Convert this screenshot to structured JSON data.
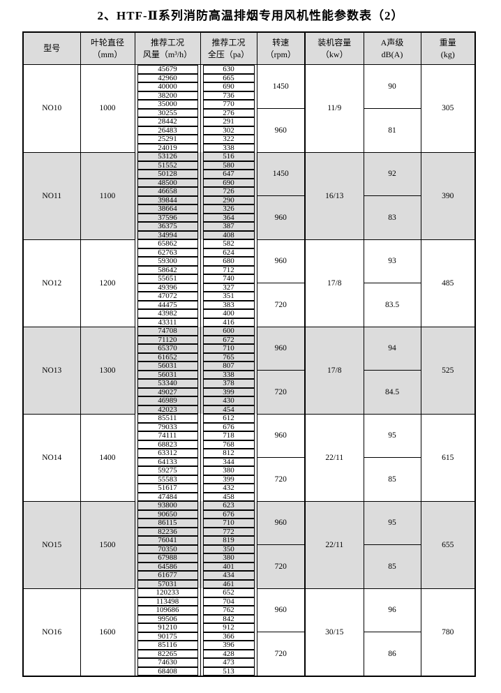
{
  "page_title": "2、HTF-Ⅱ系列消防高温排烟专用风机性能参数表（2）",
  "colors": {
    "shade": "#dcdcdc",
    "border": "#000000"
  },
  "table": {
    "headers": [
      {
        "line1": "型号",
        "line2": ""
      },
      {
        "line1": "叶轮直径",
        "line2": "（mm）"
      },
      {
        "line1": "推荐工况",
        "line2": "风量（m³/h）"
      },
      {
        "line1": "推荐工况",
        "line2": "全压（pa）"
      },
      {
        "line1": "转速",
        "line2": "（rpm）"
      },
      {
        "line1": "装机容量",
        "line2": "（kw）"
      },
      {
        "line1": "A声级",
        "line2": "dB(A)"
      },
      {
        "line1": "重量",
        "line2": "(kg)"
      }
    ],
    "blocks": [
      {
        "model": "NO10",
        "diameter_mm": "1000",
        "capacity_kw": "11/9",
        "weight_kg": "305",
        "shaded": false,
        "groups": [
          {
            "speed_rpm": "1450",
            "db_a": "90",
            "rows": [
              [
                "45679",
                "630"
              ],
              [
                "42960",
                "665"
              ],
              [
                "40000",
                "690"
              ],
              [
                "38200",
                "736"
              ],
              [
                "35000",
                "770"
              ]
            ]
          },
          {
            "speed_rpm": "960",
            "db_a": "81",
            "rows": [
              [
                "30255",
                "276"
              ],
              [
                "28442",
                "291"
              ],
              [
                "26483",
                "302"
              ],
              [
                "25291",
                "322"
              ],
              [
                "24019",
                "338"
              ]
            ]
          }
        ]
      },
      {
        "model": "NO11",
        "diameter_mm": "1100",
        "capacity_kw": "16/13",
        "weight_kg": "390",
        "shaded": true,
        "groups": [
          {
            "speed_rpm": "1450",
            "db_a": "92",
            "rows": [
              [
                "53126",
                "516"
              ],
              [
                "51552",
                "580"
              ],
              [
                "50128",
                "647"
              ],
              [
                "48500",
                "690"
              ],
              [
                "46658",
                "726"
              ]
            ]
          },
          {
            "speed_rpm": "960",
            "db_a": "83",
            "rows": [
              [
                "39844",
                "290"
              ],
              [
                "38664",
                "326"
              ],
              [
                "37596",
                "364"
              ],
              [
                "36375",
                "387"
              ],
              [
                "34994",
                "408"
              ]
            ]
          }
        ]
      },
      {
        "model": "NO12",
        "diameter_mm": "1200",
        "capacity_kw": "17/8",
        "weight_kg": "485",
        "shaded": false,
        "groups": [
          {
            "speed_rpm": "960",
            "db_a": "93",
            "rows": [
              [
                "65862",
                "582"
              ],
              [
                "62763",
                "624"
              ],
              [
                "59300",
                "680"
              ],
              [
                "58642",
                "712"
              ],
              [
                "55651",
                "740"
              ]
            ]
          },
          {
            "speed_rpm": "720",
            "db_a": "83.5",
            "rows": [
              [
                "49396",
                "327"
              ],
              [
                "47072",
                "351"
              ],
              [
                "44475",
                "383"
              ],
              [
                "43982",
                "400"
              ],
              [
                "43311",
                "416"
              ]
            ]
          }
        ]
      },
      {
        "model": "NO13",
        "diameter_mm": "1300",
        "capacity_kw": "17/8",
        "weight_kg": "525",
        "shaded": true,
        "groups": [
          {
            "speed_rpm": "960",
            "db_a": "94",
            "rows": [
              [
                "74708",
                "600"
              ],
              [
                "71120",
                "672"
              ],
              [
                "65370",
                "710"
              ],
              [
                "61652",
                "765"
              ],
              [
                "56031",
                "807"
              ]
            ]
          },
          {
            "speed_rpm": "720",
            "db_a": "84.5",
            "rows": [
              [
                "56031",
                "338"
              ],
              [
                "53340",
                "378"
              ],
              [
                "49027",
                "399"
              ],
              [
                "46989",
                "430"
              ],
              [
                "42023",
                "454"
              ]
            ]
          }
        ]
      },
      {
        "model": "NO14",
        "diameter_mm": "1400",
        "capacity_kw": "22/11",
        "weight_kg": "615",
        "shaded": false,
        "groups": [
          {
            "speed_rpm": "960",
            "db_a": "95",
            "rows": [
              [
                "85511",
                "612"
              ],
              [
                "79033",
                "676"
              ],
              [
                "74111",
                "718"
              ],
              [
                "68823",
                "768"
              ],
              [
                "63312",
                "812"
              ]
            ]
          },
          {
            "speed_rpm": "720",
            "db_a": "85",
            "rows": [
              [
                "64133",
                "344"
              ],
              [
                "59275",
                "380"
              ],
              [
                "55583",
                "399"
              ],
              [
                "51617",
                "432"
              ],
              [
                "47484",
                "458"
              ]
            ]
          }
        ]
      },
      {
        "model": "NO15",
        "diameter_mm": "1500",
        "capacity_kw": "22/11",
        "weight_kg": "655",
        "shaded": true,
        "groups": [
          {
            "speed_rpm": "960",
            "db_a": "95",
            "rows": [
              [
                "93800",
                "623"
              ],
              [
                "90650",
                "676"
              ],
              [
                "86115",
                "710"
              ],
              [
                "82236",
                "772"
              ],
              [
                "76041",
                "819"
              ]
            ]
          },
          {
            "speed_rpm": "720",
            "db_a": "85",
            "rows": [
              [
                "70350",
                "350"
              ],
              [
                "67988",
                "380"
              ],
              [
                "64586",
                "401"
              ],
              [
                "61677",
                "434"
              ],
              [
                "57031",
                "461"
              ]
            ]
          }
        ]
      },
      {
        "model": "NO16",
        "diameter_mm": "1600",
        "capacity_kw": "30/15",
        "weight_kg": "780",
        "shaded": false,
        "groups": [
          {
            "speed_rpm": "960",
            "db_a": "96",
            "rows": [
              [
                "120233",
                "652"
              ],
              [
                "113498",
                "704"
              ],
              [
                "109686",
                "762"
              ],
              [
                "99506",
                "842"
              ],
              [
                "91210",
                "912"
              ]
            ]
          },
          {
            "speed_rpm": "720",
            "db_a": "86",
            "rows": [
              [
                "90175",
                "366"
              ],
              [
                "85116",
                "396"
              ],
              [
                "82265",
                "428"
              ],
              [
                "74630",
                "473"
              ],
              [
                "68408",
                "513"
              ]
            ]
          }
        ]
      }
    ]
  }
}
